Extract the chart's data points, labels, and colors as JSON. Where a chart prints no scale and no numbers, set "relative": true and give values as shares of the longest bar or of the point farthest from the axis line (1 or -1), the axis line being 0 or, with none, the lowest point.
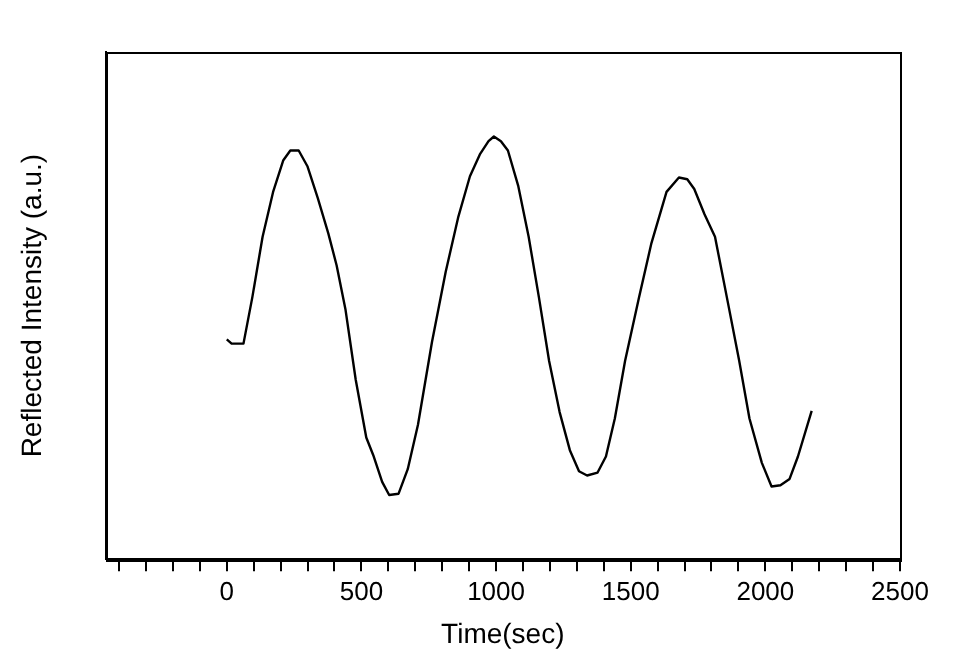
{
  "chart_data": {
    "type": "line",
    "xlabel": "Time(sec)",
    "ylabel": "Reflected Intensity (a.u.)",
    "relative": true,
    "grid": false,
    "legend": false,
    "marker": "none",
    "line_style": "solid",
    "tick_labels": "x",
    "xlim": [
      -450,
      2500
    ],
    "xticks": [
      {
        "value": -400,
        "label": null
      },
      {
        "value": -300,
        "label": null
      },
      {
        "value": -200,
        "label": null
      },
      {
        "value": -100,
        "label": null
      },
      0,
      {
        "value": 100,
        "label": null
      },
      {
        "value": 200,
        "label": null
      },
      {
        "value": 300,
        "label": null
      },
      {
        "value": 400,
        "label": null
      },
      500,
      {
        "value": 600,
        "label": null
      },
      {
        "value": 700,
        "label": null
      },
      {
        "value": 800,
        "label": null
      },
      {
        "value": 900,
        "label": null
      },
      1000,
      {
        "value": 1100,
        "label": null
      },
      {
        "value": 1200,
        "label": null
      },
      {
        "value": 1300,
        "label": null
      },
      {
        "value": 1400,
        "label": null
      },
      1500,
      {
        "value": 1600,
        "label": null
      },
      {
        "value": 1700,
        "label": null
      },
      {
        "value": 1800,
        "label": null
      },
      {
        "value": 1900,
        "label": null
      },
      2000,
      {
        "value": 2100,
        "label": null
      },
      {
        "value": 2200,
        "label": null
      },
      {
        "value": 2300,
        "label": null
      },
      {
        "value": 2400,
        "label": null
      },
      2500
    ],
    "series": [
      {
        "color": "#000000",
        "x": [
          0,
          18,
          62,
          95,
          133,
          172,
          210,
          236,
          267,
          300,
          338,
          377,
          408,
          441,
          479,
          518,
          544,
          577,
          603,
          638,
          672,
          710,
          762,
          813,
          859,
          903,
          941,
          972,
          992,
          1018,
          1044,
          1082,
          1121,
          1159,
          1197,
          1236,
          1274,
          1308,
          1338,
          1377,
          1408,
          1441,
          1479,
          1531,
          1577,
          1633,
          1679,
          1710,
          1736,
          1774,
          1813,
          1864,
          1903,
          1941,
          1987,
          2023,
          2056,
          2090,
          2121,
          2172
        ],
        "values": [
          0.52,
          0.51,
          0.51,
          0.62,
          0.763,
          0.869,
          0.944,
          0.967,
          0.967,
          0.929,
          0.854,
          0.771,
          0.695,
          0.59,
          0.424,
          0.288,
          0.246,
          0.183,
          0.152,
          0.155,
          0.213,
          0.318,
          0.514,
          0.68,
          0.808,
          0.906,
          0.959,
          0.989,
          1,
          0.989,
          0.967,
          0.884,
          0.763,
          0.62,
          0.469,
          0.348,
          0.258,
          0.208,
          0.198,
          0.205,
          0.243,
          0.333,
          0.469,
          0.62,
          0.748,
          0.869,
          0.903,
          0.899,
          0.876,
          0.816,
          0.763,
          0.597,
          0.469,
          0.333,
          0.228,
          0.172,
          0.175,
          0.19,
          0.243,
          0.351
        ]
      }
    ]
  }
}
